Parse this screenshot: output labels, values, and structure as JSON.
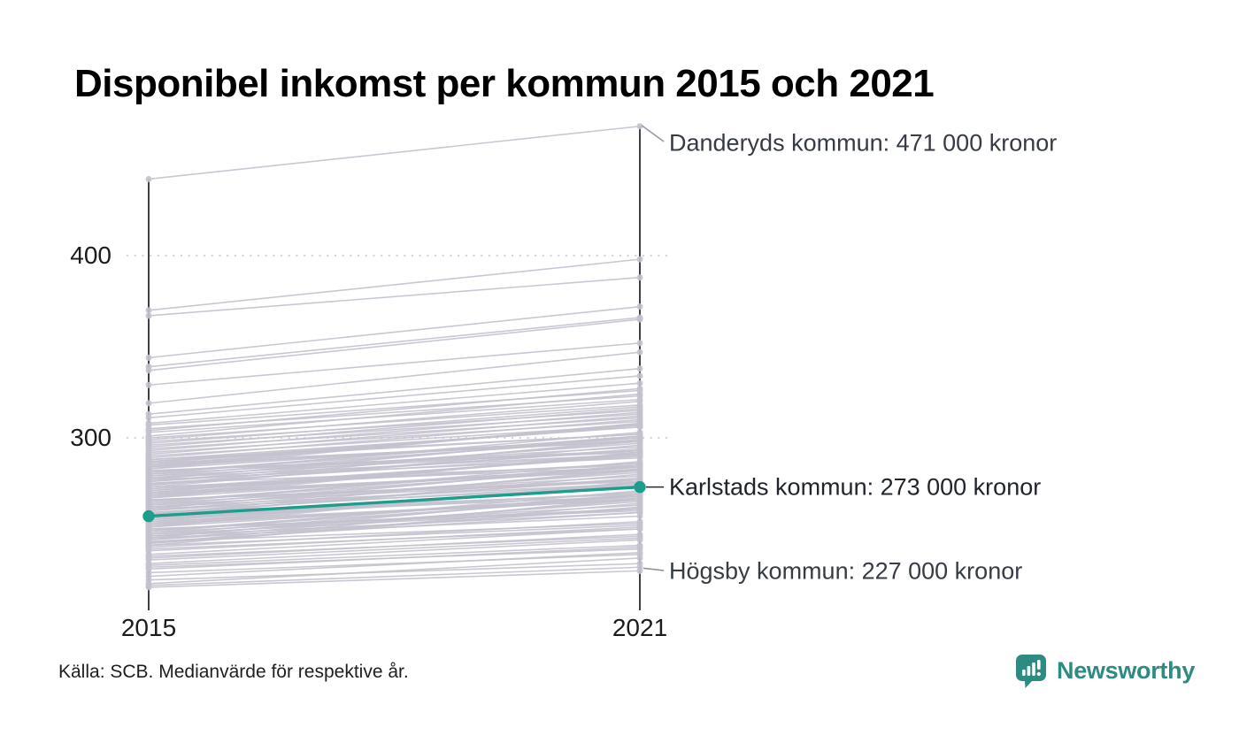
{
  "title": "Disponibel inkomst per kommun 2015 och 2021",
  "source": "Källa: SCB. Medianvärde för respektive år.",
  "branding": {
    "name": "Newsworthy",
    "color": "#2e8b81",
    "icon": "bar-chart-speech-bubble-icon"
  },
  "axis": {
    "y_tick_labels": [
      "400",
      "300"
    ],
    "x_tick_labels": [
      "2015",
      "2021"
    ]
  },
  "chart_data": {
    "type": "line",
    "subtype": "slope-chart",
    "x": [
      2015,
      2021
    ],
    "unit": "tusen kronor (medianvärde)",
    "yticks": [
      400,
      300
    ],
    "ylim": [
      205,
      480
    ],
    "grid": "dotted-horizontal",
    "legend_position": "none",
    "colors": {
      "background_line": "#c5c2cf",
      "highlight_line": "#1d9d8b",
      "axis": "#111111",
      "gridline": "#d6d5da"
    },
    "annotations": [
      {
        "name": "Danderyds kommun",
        "label": "Danderyds kommun: 471 000 kronor",
        "value_2021": 471,
        "highlight": false
      },
      {
        "name": "Karlstads kommun",
        "label": "Karlstads kommun: 273 000 kronor",
        "value_2021": 273,
        "highlight": true
      },
      {
        "name": "Högsby kommun",
        "label": "Högsby kommun: 227 000 kronor",
        "value_2021": 227,
        "highlight": false
      }
    ],
    "highlight_series": {
      "name": "Karlstads kommun",
      "values": [
        257,
        273
      ]
    },
    "named_series": [
      {
        "name": "Danderyds kommun",
        "values": [
          442,
          471
        ]
      },
      {
        "name": "Högsby kommun",
        "values": [
          218,
          227
        ]
      }
    ],
    "background_series": [
      [
        370,
        398
      ],
      [
        367,
        388
      ],
      [
        344,
        372
      ],
      [
        339,
        366
      ],
      [
        337,
        365
      ],
      [
        329,
        352
      ],
      [
        319,
        347
      ],
      [
        313,
        338
      ],
      [
        311,
        334
      ],
      [
        308,
        330
      ],
      [
        307,
        326
      ],
      [
        305,
        323
      ],
      [
        304,
        327
      ],
      [
        303,
        321
      ],
      [
        301,
        324
      ],
      [
        300,
        318
      ],
      [
        299,
        320
      ],
      [
        298,
        315
      ],
      [
        297,
        317
      ],
      [
        296,
        313
      ],
      [
        295,
        316
      ],
      [
        294,
        311
      ],
      [
        293,
        314
      ],
      [
        292,
        309
      ],
      [
        291,
        312
      ],
      [
        290,
        307
      ],
      [
        289,
        310
      ],
      [
        288,
        302
      ],
      [
        288,
        306
      ],
      [
        287,
        306
      ],
      [
        287,
        302
      ],
      [
        286,
        298
      ],
      [
        286,
        307
      ],
      [
        285,
        307
      ],
      [
        285,
        298
      ],
      [
        284,
        300
      ],
      [
        284,
        308
      ],
      [
        283,
        308
      ],
      [
        283,
        300
      ],
      [
        282,
        293
      ],
      [
        282,
        292
      ],
      [
        281,
        299
      ],
      [
        281,
        301
      ],
      [
        280,
        295
      ],
      [
        280,
        303
      ],
      [
        279,
        300
      ],
      [
        279,
        293
      ],
      [
        278,
        291
      ],
      [
        278,
        297
      ],
      [
        277,
        301
      ],
      [
        277,
        289
      ],
      [
        276,
        293
      ],
      [
        276,
        298
      ],
      [
        275,
        285
      ],
      [
        275,
        291
      ],
      [
        274,
        294
      ],
      [
        274,
        299
      ],
      [
        273,
        296
      ],
      [
        273,
        284
      ],
      [
        272,
        286
      ],
      [
        272,
        290
      ],
      [
        271,
        290
      ],
      [
        271,
        286
      ],
      [
        270,
        282
      ],
      [
        270,
        291
      ],
      [
        269,
        291
      ],
      [
        269,
        282
      ],
      [
        268,
        284
      ],
      [
        268,
        292
      ],
      [
        267,
        292
      ],
      [
        267,
        284
      ],
      [
        266,
        277
      ],
      [
        266,
        276
      ],
      [
        265,
        283
      ],
      [
        265,
        285
      ],
      [
        264,
        279
      ],
      [
        264,
        287
      ],
      [
        263,
        284
      ],
      [
        263,
        277
      ],
      [
        262,
        275
      ],
      [
        262,
        281
      ],
      [
        261,
        285
      ],
      [
        261,
        273
      ],
      [
        260,
        277
      ],
      [
        260,
        282
      ],
      [
        259,
        269
      ],
      [
        259,
        275
      ],
      [
        258,
        278
      ],
      [
        258,
        283
      ],
      [
        257,
        280
      ],
      [
        257,
        268
      ],
      [
        256,
        270
      ],
      [
        256,
        274
      ],
      [
        255,
        274
      ],
      [
        255,
        270
      ],
      [
        254,
        266
      ],
      [
        254,
        275
      ],
      [
        253,
        275
      ],
      [
        253,
        266
      ],
      [
        252,
        268
      ],
      [
        252,
        276
      ],
      [
        251,
        276
      ],
      [
        251,
        268
      ],
      [
        250,
        261
      ],
      [
        250,
        260
      ],
      [
        249,
        267
      ],
      [
        249,
        269
      ],
      [
        248,
        263
      ],
      [
        248,
        271
      ],
      [
        247,
        268
      ],
      [
        247,
        261
      ],
      [
        246,
        259
      ],
      [
        246,
        265
      ],
      [
        245,
        269
      ],
      [
        245,
        257
      ],
      [
        244,
        261
      ],
      [
        244,
        266
      ],
      [
        243,
        253
      ],
      [
        243,
        259
      ],
      [
        242,
        262
      ],
      [
        242,
        267
      ],
      [
        241,
        264
      ],
      [
        241,
        252
      ],
      [
        240,
        254
      ],
      [
        239,
        250
      ],
      [
        238,
        251
      ],
      [
        236,
        250
      ],
      [
        235,
        246
      ],
      [
        234,
        247
      ],
      [
        233,
        245
      ],
      [
        231,
        244
      ],
      [
        230,
        241
      ],
      [
        229,
        239
      ],
      [
        228,
        240
      ],
      [
        226,
        236
      ],
      [
        224,
        237
      ],
      [
        222,
        231
      ],
      [
        220,
        234
      ],
      [
        219,
        229
      ]
    ]
  }
}
